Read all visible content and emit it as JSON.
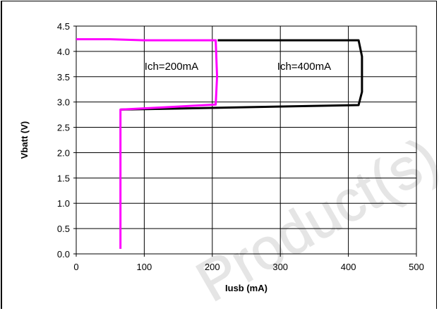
{
  "chart_data": {
    "type": "line",
    "title": "",
    "xlabel": "Iusb (mA)",
    "ylabel": "Vbatt (V)",
    "xlim": [
      0,
      500
    ],
    "ylim": [
      0,
      4.5
    ],
    "xticks": [
      "0",
      "100",
      "200",
      "300",
      "400",
      "500"
    ],
    "yticks": [
      "0.0",
      "0.5",
      "1.0",
      "1.5",
      "2.0",
      "2.5",
      "3.0",
      "3.5",
      "4.0",
      "4.5"
    ],
    "grid": true,
    "legend": "none",
    "series": [
      {
        "color": "#000000",
        "points": [
          [
            65,
            2.85
          ],
          [
            415,
            2.94
          ],
          [
            420,
            3.2
          ],
          [
            420,
            3.9
          ],
          [
            415,
            4.22
          ],
          [
            208,
            4.22
          ]
        ]
      },
      {
        "color": "#ff00ff",
        "points": [
          [
            0,
            4.24
          ],
          [
            50,
            4.24
          ],
          [
            100,
            4.22
          ],
          [
            205,
            4.22
          ],
          [
            207,
            3.5
          ],
          [
            205,
            2.95
          ],
          [
            65,
            2.85
          ],
          [
            65,
            1.0
          ],
          [
            65,
            0.1
          ]
        ]
      }
    ],
    "annotations": [
      {
        "text": "Ich=200mA",
        "x": 140,
        "y": 3.5
      },
      {
        "text": "Ich=400mA",
        "x": 335,
        "y": 3.5
      }
    ]
  },
  "watermark": "Product(s)"
}
